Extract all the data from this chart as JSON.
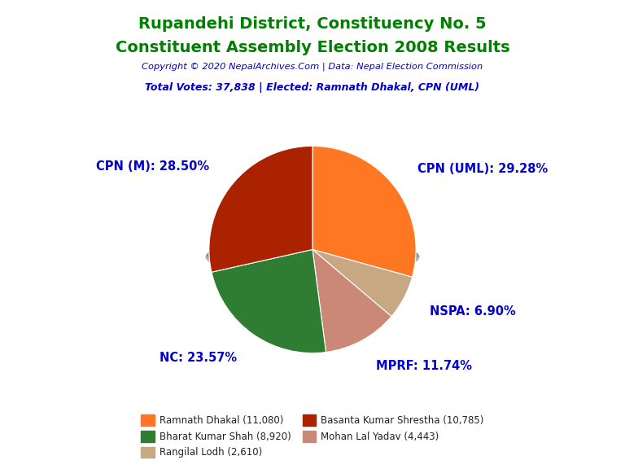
{
  "title_line1": "Rupandehi District, Constituency No. 5",
  "title_line2": "Constituent Assembly Election 2008 Results",
  "title_color": "#008000",
  "copyright_text": "Copyright © 2020 NepalArchives.Com | Data: Nepal Election Commission",
  "copyright_color": "#0000CD",
  "total_votes_text": "Total Votes: 37,838 | Elected: Ramnath Dhakal, CPN (UML)",
  "total_votes_color": "#0000CD",
  "slices": [
    {
      "label": "CPN (UML)",
      "value": 11080,
      "pct": "29.28%",
      "color": "#FF7722"
    },
    {
      "label": "NSPA",
      "value": 2610,
      "pct": "6.90%",
      "color": "#C8A882"
    },
    {
      "label": "MPRF",
      "value": 4443,
      "pct": "11.74%",
      "color": "#CC8877"
    },
    {
      "label": "NC",
      "value": 8920,
      "pct": "23.57%",
      "color": "#2E7D32"
    },
    {
      "label": "CPN (M)",
      "value": 10785,
      "pct": "28.50%",
      "color": "#AA2200"
    }
  ],
  "label_color": "#0000CD",
  "label_fontsize": 10.5,
  "legend_entries": [
    {
      "text": "Ramnath Dhakal (11,080)",
      "color": "#FF7722"
    },
    {
      "text": "Bharat Kumar Shah (8,920)",
      "color": "#2E7D32"
    },
    {
      "text": "Rangilal Lodh (2,610)",
      "color": "#C8A882"
    },
    {
      "text": "Basanta Kumar Shrestha (10,785)",
      "color": "#AA2200"
    },
    {
      "text": "Mohan Lal Yadav (4,443)",
      "color": "#CC8877"
    }
  ],
  "background_color": "#FFFFFF",
  "startangle": 90
}
